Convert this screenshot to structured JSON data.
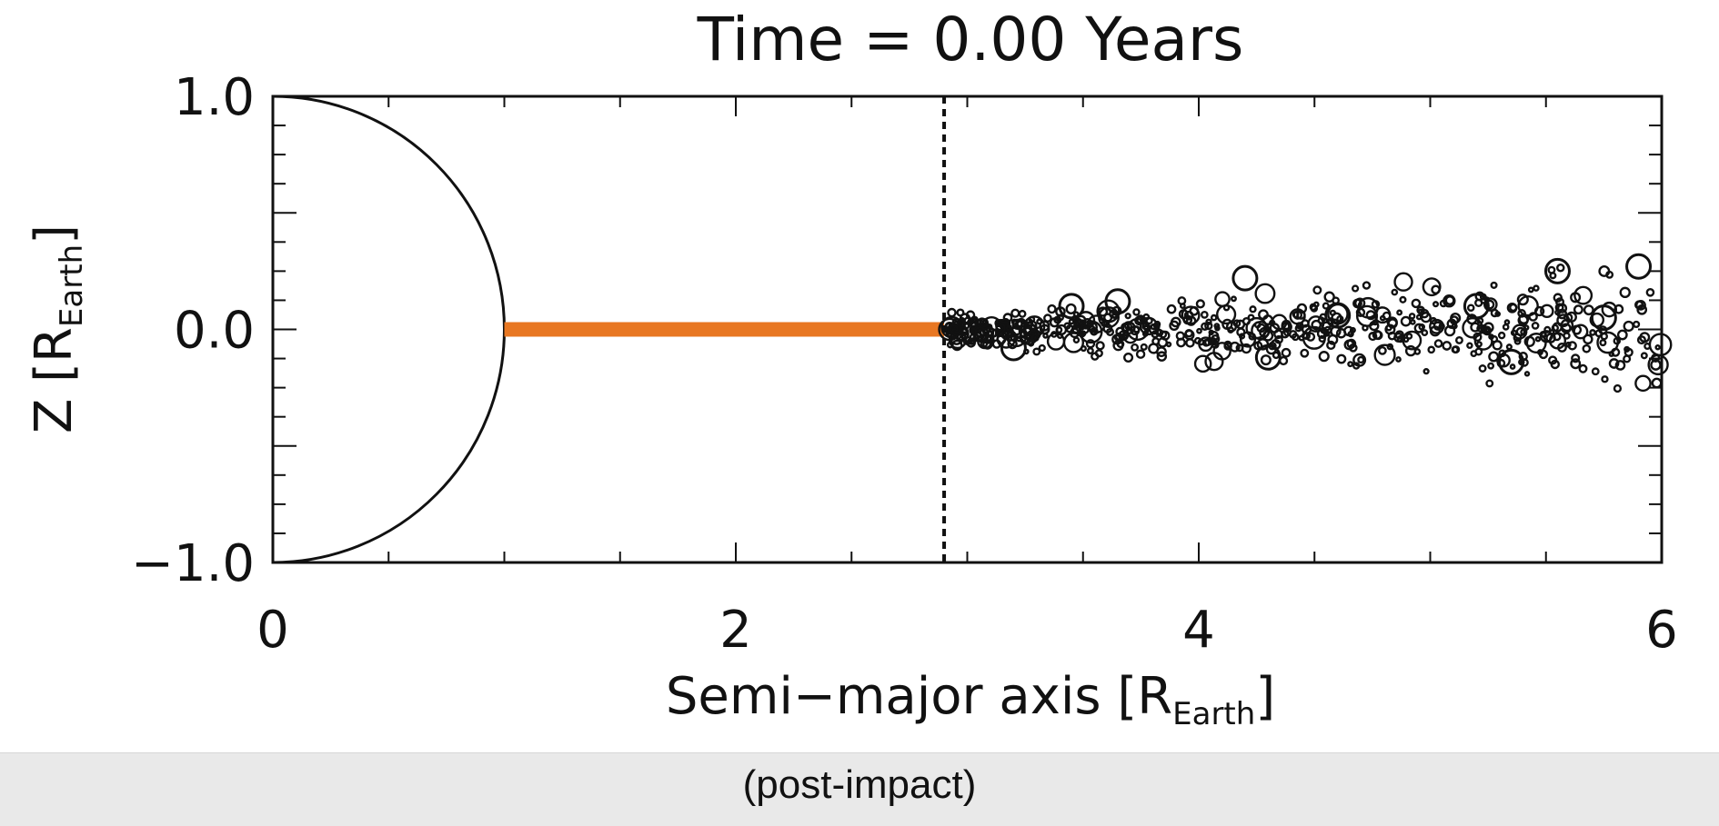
{
  "chart_data": {
    "type": "scatter",
    "title": "Time = 0.00 Years",
    "xlabel": {
      "main": "Semi−major axis [R",
      "sub": "Earth",
      "close": "]"
    },
    "ylabel": {
      "main": "Z [R",
      "sub": "Earth",
      "close": "]"
    },
    "xlim": [
      0,
      6
    ],
    "ylim": [
      -1.0,
      1.0
    ],
    "x_ticks": [
      {
        "v": 0,
        "label": "0"
      },
      {
        "v": 2,
        "label": "2"
      },
      {
        "v": 4,
        "label": "4"
      },
      {
        "v": 6,
        "label": "6"
      }
    ],
    "y_ticks": [
      {
        "v": -1.0,
        "label": "−1.0"
      },
      {
        "v": 0.0,
        "label": "0.0"
      },
      {
        "v": 1.0,
        "label": "1.0"
      }
    ],
    "planet_radius": 1.0,
    "disk": {
      "x_start": 1.0,
      "x_end": 2.9,
      "z": 0.0,
      "color": "#e87722"
    },
    "roche_limit_x": 2.9,
    "moonlets": {
      "x_range": [
        2.9,
        6.0
      ],
      "z_spread": [
        -0.3,
        0.3
      ],
      "approx_count": 600,
      "large_examples": [
        {
          "x": 3.2,
          "z": -0.08
        },
        {
          "x": 3.45,
          "z": 0.1
        },
        {
          "x": 3.65,
          "z": 0.12
        },
        {
          "x": 4.2,
          "z": 0.22
        },
        {
          "x": 4.3,
          "z": -0.12
        },
        {
          "x": 4.6,
          "z": 0.06
        },
        {
          "x": 5.2,
          "z": 0.1
        },
        {
          "x": 5.35,
          "z": -0.14
        },
        {
          "x": 5.55,
          "z": 0.25
        },
        {
          "x": 5.75,
          "z": 0.05
        },
        {
          "x": 5.9,
          "z": 0.27
        }
      ]
    },
    "grid": false,
    "legend": "none"
  },
  "caption": "(post-impact)"
}
